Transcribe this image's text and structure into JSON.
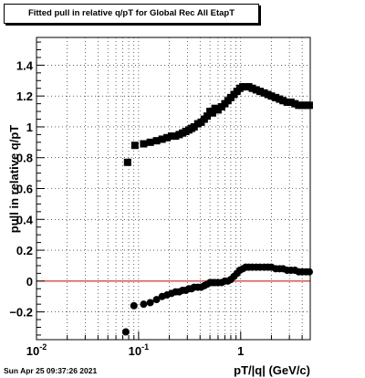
{
  "chart_data": {
    "type": "scatter",
    "title": "Fitted pull in relative q/pT for Global Rec All EtapT",
    "xlabel": "pT/|q| (GeV/c)",
    "ylabel": "pull in relative q/pT",
    "x_scale": "log",
    "xlim": [
      0.01,
      4.8
    ],
    "ylim": [
      -0.38,
      1.58
    ],
    "x_tick_labels": [
      {
        "v": 0.01,
        "label": "10",
        "sup": "-2"
      },
      {
        "v": 0.1,
        "label": "10",
        "sup": "-1"
      },
      {
        "v": 1,
        "label": "1",
        "sup": ""
      }
    ],
    "y_ticks": [
      -0.2,
      0,
      0.2,
      0.4,
      0.6,
      0.8,
      1,
      1.2,
      1.4
    ],
    "y_tick_labels": [
      "−0.2",
      "0",
      "0.2",
      "0.4",
      "0.6",
      "0.8",
      "1",
      "1.2",
      "1.4"
    ],
    "grid": true,
    "reference_line": {
      "y": 0,
      "color": "#cc0000"
    },
    "series": [
      {
        "marker": "square",
        "color": "#000000",
        "x": [
          0.078,
          0.092,
          0.112,
          0.13,
          0.15,
          0.17,
          0.19,
          0.21,
          0.23,
          0.25,
          0.27,
          0.29,
          0.31,
          0.33,
          0.35,
          0.38,
          0.41,
          0.44,
          0.47,
          0.5,
          0.53,
          0.56,
          0.6,
          0.65,
          0.7,
          0.75,
          0.8,
          0.86,
          0.92,
          0.98,
          1.05,
          1.12,
          1.2,
          1.3,
          1.42,
          1.55,
          1.7,
          1.85,
          2.0,
          2.2,
          2.4,
          2.6,
          2.85,
          3.1,
          3.4,
          3.7,
          4.0,
          4.35,
          4.7
        ],
        "y": [
          0.77,
          0.88,
          0.89,
          0.9,
          0.91,
          0.92,
          0.93,
          0.94,
          0.94,
          0.95,
          0.96,
          0.97,
          0.98,
          0.99,
          1.0,
          1.02,
          1.03,
          1.05,
          1.07,
          1.1,
          1.09,
          1.12,
          1.11,
          1.13,
          1.15,
          1.17,
          1.19,
          1.21,
          1.23,
          1.25,
          1.26,
          1.26,
          1.26,
          1.25,
          1.24,
          1.23,
          1.22,
          1.21,
          1.2,
          1.19,
          1.18,
          1.17,
          1.16,
          1.16,
          1.15,
          1.14,
          1.14,
          1.14,
          1.14
        ]
      },
      {
        "marker": "circle",
        "color": "#000000",
        "x": [
          0.075,
          0.09,
          0.112,
          0.13,
          0.15,
          0.17,
          0.19,
          0.21,
          0.23,
          0.25,
          0.27,
          0.29,
          0.31,
          0.33,
          0.35,
          0.38,
          0.41,
          0.44,
          0.47,
          0.5,
          0.53,
          0.56,
          0.6,
          0.65,
          0.7,
          0.75,
          0.8,
          0.86,
          0.92,
          0.98,
          1.05,
          1.12,
          1.2,
          1.3,
          1.42,
          1.55,
          1.7,
          1.85,
          2.0,
          2.2,
          2.4,
          2.6,
          2.85,
          3.1,
          3.4,
          3.7,
          4.0,
          4.35,
          4.7
        ],
        "y": [
          -0.33,
          -0.16,
          -0.15,
          -0.14,
          -0.12,
          -0.1,
          -0.09,
          -0.08,
          -0.07,
          -0.07,
          -0.06,
          -0.06,
          -0.05,
          -0.05,
          -0.04,
          -0.04,
          -0.04,
          -0.03,
          -0.02,
          -0.01,
          -0.01,
          -0.01,
          -0.01,
          -0.01,
          0.0,
          0.0,
          0.01,
          0.03,
          0.05,
          0.07,
          0.08,
          0.09,
          0.09,
          0.09,
          0.09,
          0.09,
          0.09,
          0.09,
          0.09,
          0.08,
          0.08,
          0.08,
          0.07,
          0.07,
          0.07,
          0.06,
          0.06,
          0.06,
          0.06
        ]
      }
    ]
  },
  "footer": {
    "timestamp": "Sun Apr 25 09:37:26 2021"
  }
}
